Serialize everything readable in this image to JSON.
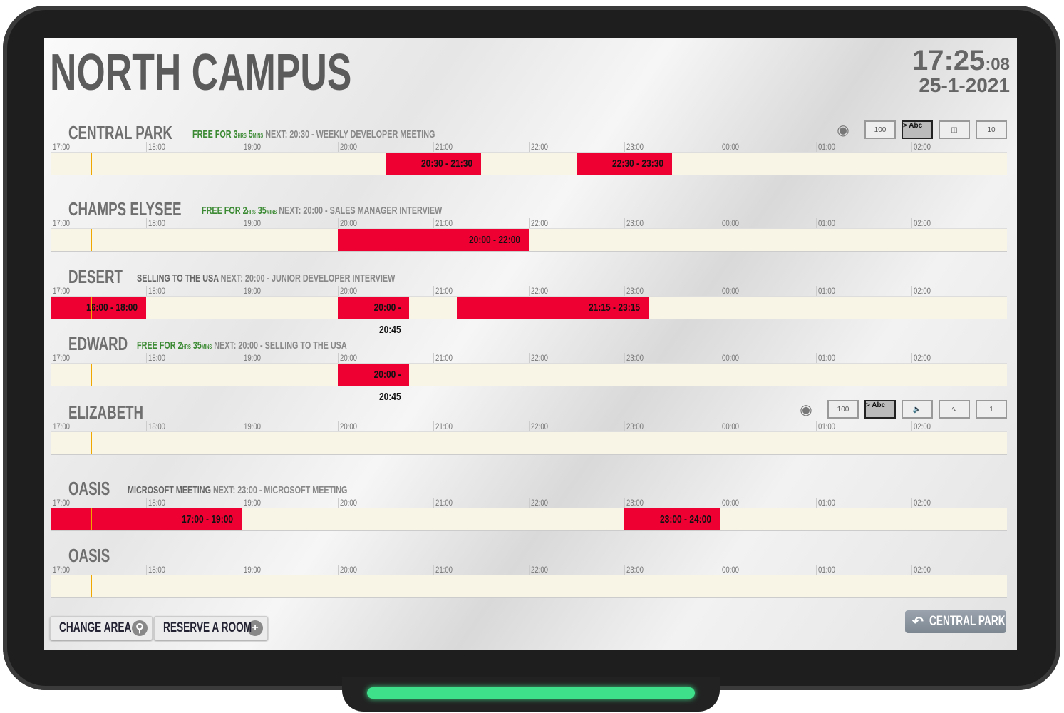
{
  "header": {
    "title": "NORTH CAMPUS",
    "time": "17:25",
    "seconds": ":08",
    "date": "25-1-2021"
  },
  "timeline": {
    "start": "17:00",
    "current_time": "17:25",
    "hours": [
      "17:00",
      "18:00",
      "19:00",
      "20:00",
      "21:00",
      "22:00",
      "23:00",
      "00:00",
      "01:00",
      "02:00"
    ]
  },
  "colors": {
    "booked": "#ee0033",
    "free_text": "#3b8a33",
    "now_line": "#f0a800",
    "track": "#f8f4e6"
  },
  "rooms": [
    {
      "name": "CENTRAL PARK",
      "status": "",
      "free": {
        "label": "FREE FOR ",
        "hrs": "3",
        "hrs_unit": "HRS",
        "mins": "5",
        "mins_unit": "MINS"
      },
      "next": "NEXT: 20:30 - WEEKLY DEVELOPER MEETING",
      "amenities": [
        {
          "icon": "projector-icon"
        },
        {
          "icon": "whiteboard-icon",
          "text": "100"
        },
        {
          "icon": "screen-icon",
          "text": "> Abc"
        },
        {
          "icon": "video-camera-icon"
        },
        {
          "icon": "capacity-icon",
          "text": "10"
        }
      ],
      "events": [
        {
          "start": "20:30",
          "end": "21:30",
          "label": "20:30 - 21:30"
        },
        {
          "start": "22:30",
          "end": "23:30",
          "label": "22:30 - 23:30"
        }
      ]
    },
    {
      "name": "CHAMPS ELYSEE",
      "status": "",
      "free": {
        "label": "FREE FOR ",
        "hrs": "2",
        "hrs_unit": "HRS",
        "mins": "35",
        "mins_unit": "MINS"
      },
      "next": "NEXT: 20:00 - SALES MANAGER INTERVIEW",
      "amenities": [],
      "events": [
        {
          "start": "20:00",
          "end": "22:00",
          "label": "20:00 - 22:00"
        }
      ]
    },
    {
      "name": "DESERT",
      "status": "SELLING TO THE USA",
      "free": null,
      "next": "NEXT: 20:00 - JUNIOR DEVELOPER INTERVIEW",
      "amenities": [],
      "events": [
        {
          "start": "16:00",
          "end": "18:00",
          "label": "16:00 - 18:00"
        },
        {
          "start": "20:00",
          "end": "20:45",
          "label": "20:00 - 20:45"
        },
        {
          "start": "21:15",
          "end": "23:15",
          "label": "21:15 - 23:15"
        }
      ]
    },
    {
      "name": "EDWARD",
      "status": "",
      "free": {
        "label": "FREE FOR ",
        "hrs": "2",
        "hrs_unit": "HRS",
        "mins": "35",
        "mins_unit": "MINS"
      },
      "next": "NEXT: 20:00 - SELLING TO THE USA",
      "amenities": [],
      "events": [
        {
          "start": "20:00",
          "end": "20:45",
          "label": "20:00 - 20:45"
        }
      ]
    },
    {
      "name": "ELIZABETH",
      "status": "",
      "free": null,
      "next": "",
      "amenities": [
        {
          "icon": "projector-icon"
        },
        {
          "icon": "whiteboard-icon",
          "text": "100"
        },
        {
          "icon": "screen-icon",
          "text": "> Abc"
        },
        {
          "icon": "speaker-icon"
        },
        {
          "icon": "wifi-icon"
        },
        {
          "icon": "capacity-icon",
          "text": "1"
        }
      ],
      "events": []
    },
    {
      "name": "OASIS",
      "status": "MICROSOFT MEETING",
      "free": null,
      "next": "NEXT: 23:00 - MICROSOFT MEETING",
      "amenities": [],
      "events": [
        {
          "start": "17:00",
          "end": "19:00",
          "label": "17:00 - 19:00"
        },
        {
          "start": "23:00",
          "end": "24:00",
          "label": "23:00 - 24:00"
        }
      ]
    },
    {
      "name": "OASIS",
      "status": "",
      "free": null,
      "next": "",
      "amenities": [],
      "events": []
    }
  ],
  "footer": {
    "change_area": "CHANGE AREA",
    "reserve_room": "RESERVE A ROOM",
    "back_room": "CENTRAL PARK"
  }
}
